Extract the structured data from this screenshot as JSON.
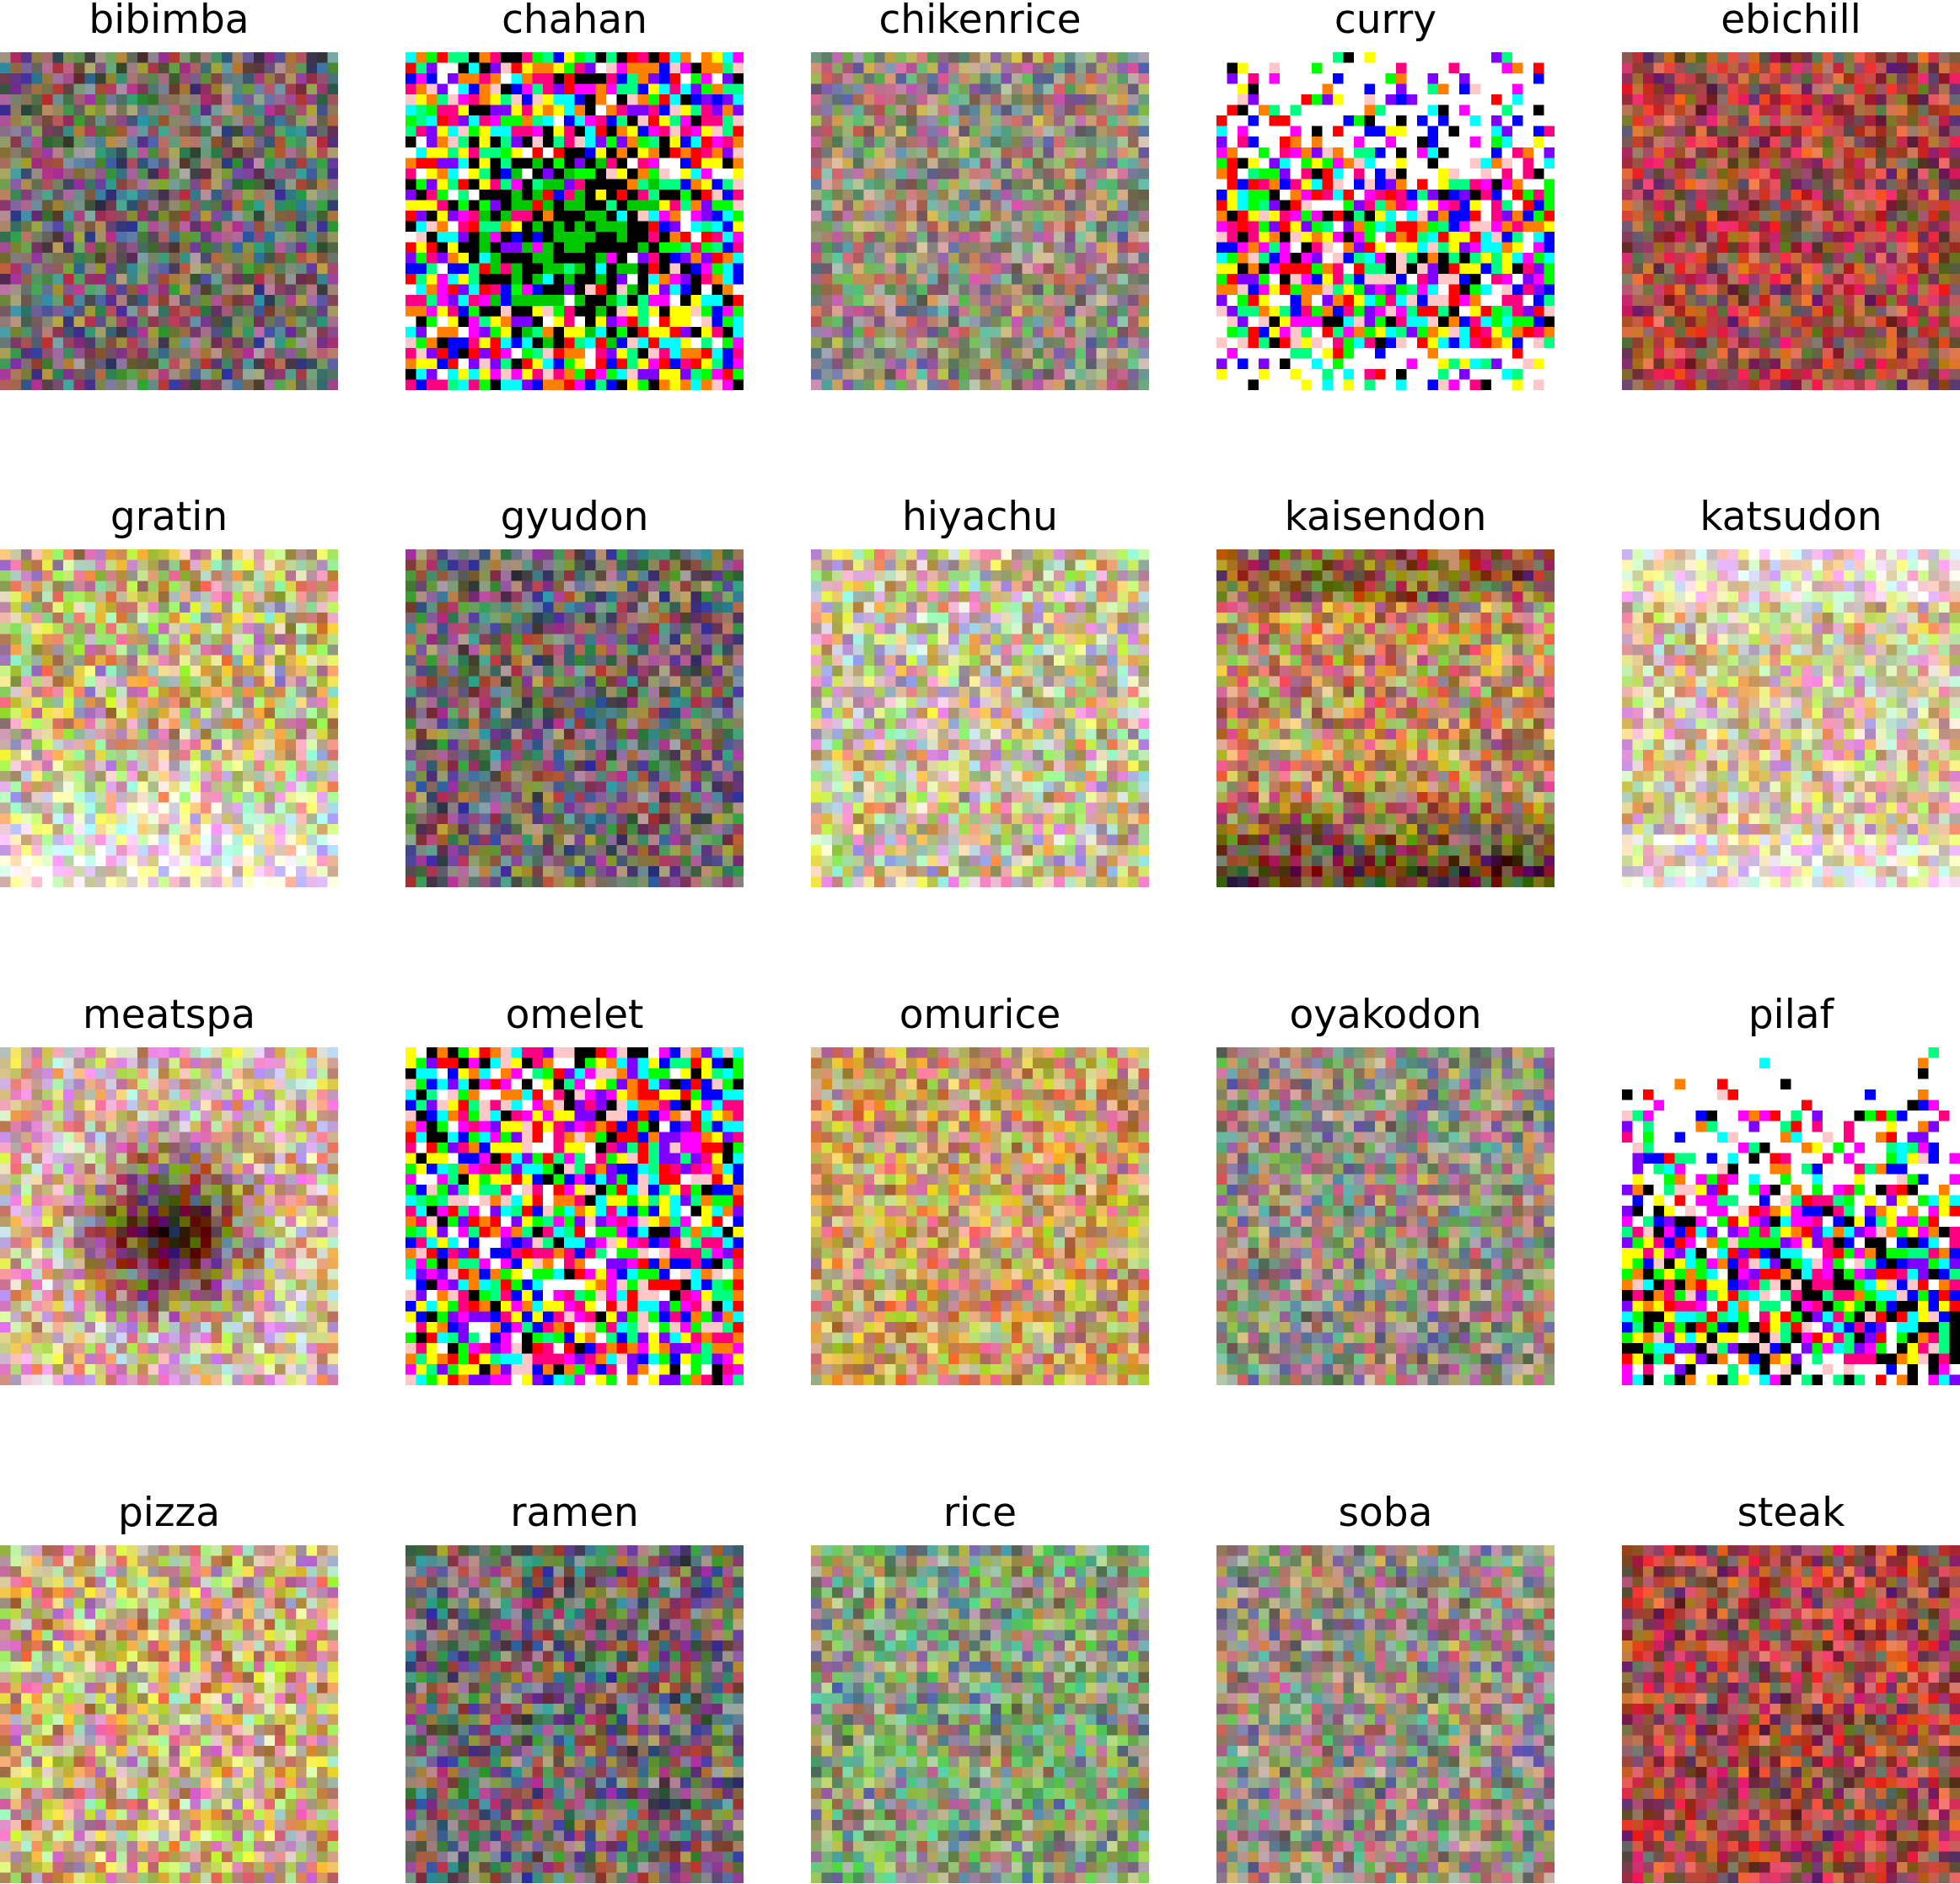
{
  "figure": {
    "grid": {
      "rows": 4,
      "cols": 5,
      "pixels_per_image": 32
    },
    "panels": [
      {
        "title": "bibimba",
        "palette": "dark-muted",
        "description_key": "muted"
      },
      {
        "title": "chahan",
        "palette": "saturated-dark-center"
      },
      {
        "title": "chikenrice",
        "palette": "muted"
      },
      {
        "title": "curry",
        "palette": "saturated-white-top"
      },
      {
        "title": "ebichill",
        "palette": "dark-red"
      },
      {
        "title": "gratin",
        "palette": "bright-bottom"
      },
      {
        "title": "gyudon",
        "palette": "dark-muted"
      },
      {
        "title": "hiyachu",
        "palette": "bright"
      },
      {
        "title": "kaisendon",
        "palette": "warm-dark-bottom"
      },
      {
        "title": "katsudon",
        "palette": "pale-warm"
      },
      {
        "title": "meatspa",
        "palette": "bright-dark-center"
      },
      {
        "title": "omelet",
        "palette": "saturated"
      },
      {
        "title": "omurice",
        "palette": "warm-orange"
      },
      {
        "title": "oyakodon",
        "palette": "muted"
      },
      {
        "title": "pilaf",
        "palette": "saturated-white-top-dark-bottom"
      },
      {
        "title": "pizza",
        "palette": "bright-warm"
      },
      {
        "title": "ramen",
        "palette": "dark-muted"
      },
      {
        "title": "rice",
        "palette": "muted-green"
      },
      {
        "title": "soba",
        "palette": "muted"
      },
      {
        "title": "steak",
        "palette": "dark-red"
      }
    ]
  }
}
